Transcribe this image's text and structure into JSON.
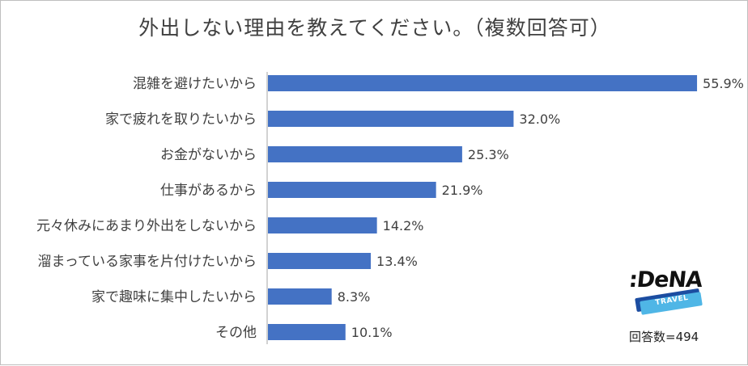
{
  "chart_data": {
    "type": "bar",
    "orientation": "horizontal",
    "title": "外出しない理由を教えてください。（複数回答可）",
    "categories": [
      "混雑を避けたいから",
      "家で疲れを取りたいから",
      "お金がないから",
      "仕事があるから",
      "元々休みにあまり外出をしないから",
      "溜まっている家事を片付けたいから",
      "家で趣味に集中したいから",
      "その他"
    ],
    "values": [
      55.9,
      32.0,
      25.3,
      21.9,
      14.2,
      13.4,
      8.3,
      10.1
    ],
    "value_labels": [
      "55.9%",
      "32.0%",
      "25.3%",
      "21.9%",
      "14.2%",
      "13.4%",
      "8.3%",
      "10.1%"
    ],
    "xlim": [
      0,
      56
    ],
    "grid": false,
    "bar_color": "#4472c4"
  },
  "logo": {
    "main": ":DeNA",
    "sub": "TRAVEL"
  },
  "footer": {
    "respondents": "回答数=494"
  }
}
